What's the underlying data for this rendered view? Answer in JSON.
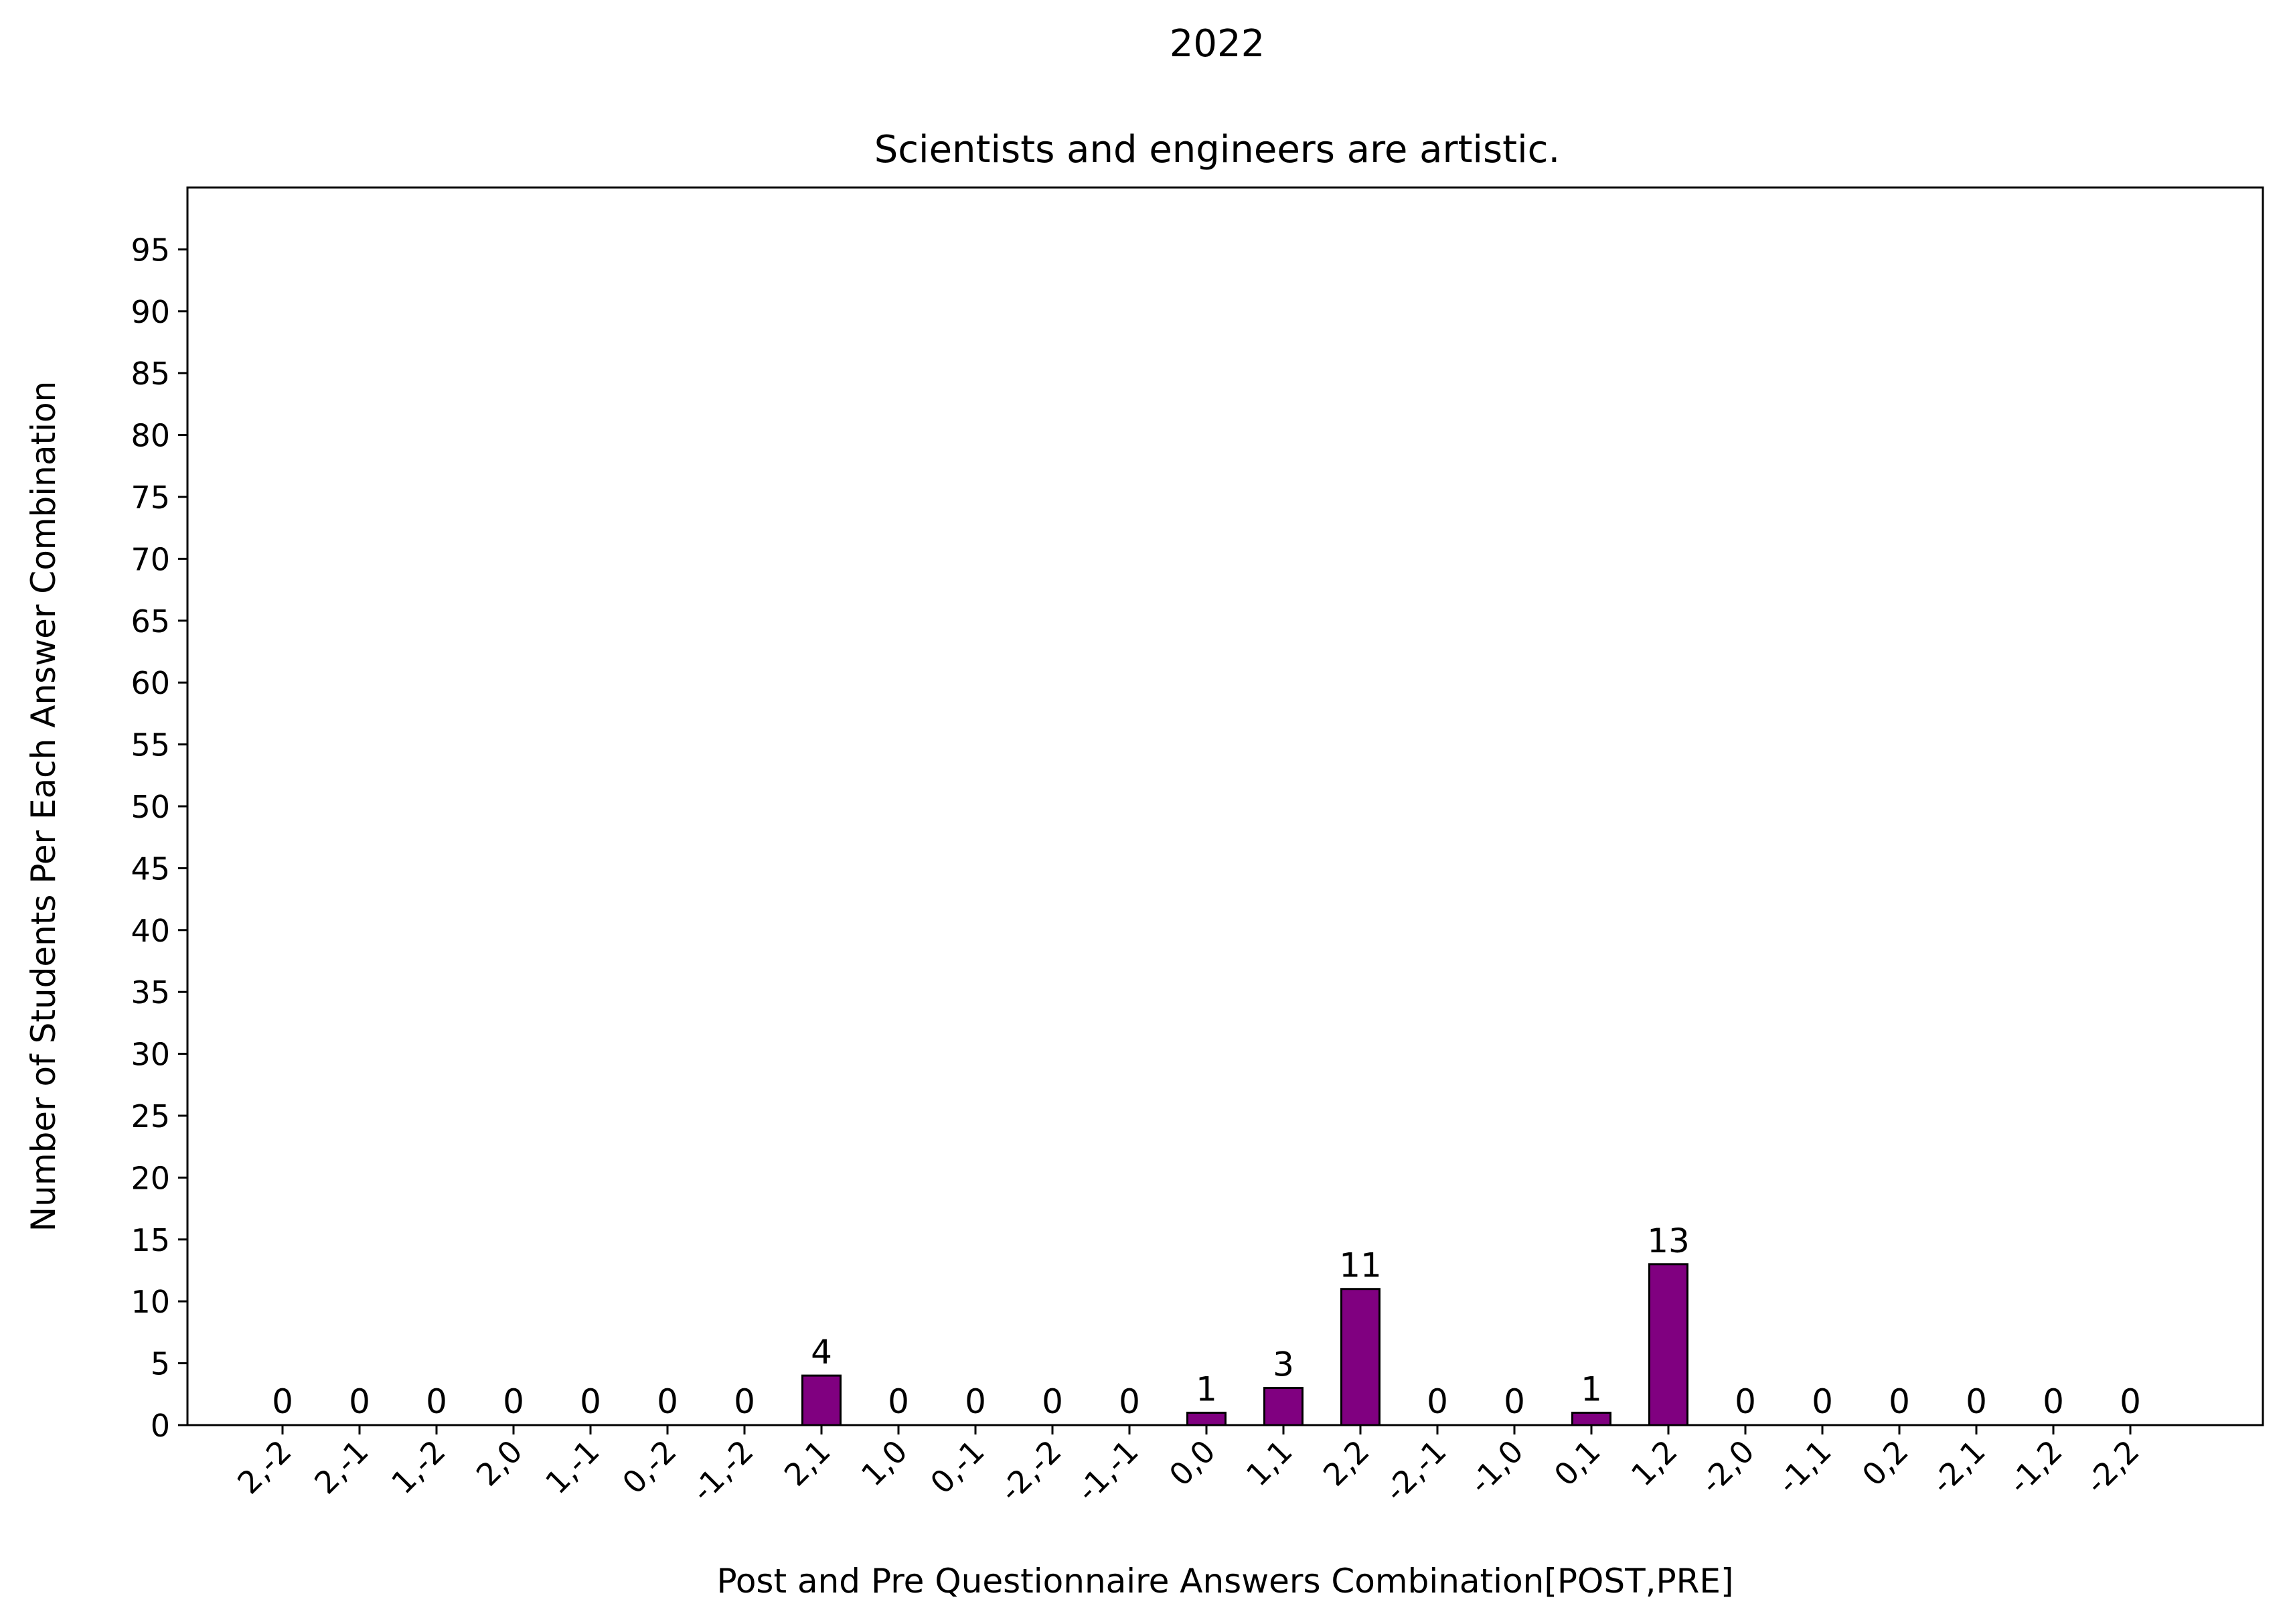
{
  "chart_data": {
    "type": "bar",
    "suptitle": "2022",
    "title": "Scientists and engineers are artistic.",
    "xlabel": "Post and Pre Questionnaire Answers Combination[POST,PRE]",
    "ylabel": "Number of Students Per Each Answer Combination",
    "categories": [
      "2,-2",
      "2,-1",
      "1,-2",
      "2,0",
      "1,-1",
      "0,-2",
      "-1,-2",
      "2,1",
      "1,0",
      "0,-1",
      "-2,-2",
      "-1,-1",
      "0,0",
      "1,1",
      "2,2",
      "-2,-1",
      "-1,0",
      "0,1",
      "1,2",
      "-2,0",
      "-1,1",
      "0,2",
      "-2,1",
      "-1,2",
      "-2,2"
    ],
    "values": [
      0,
      0,
      0,
      0,
      0,
      0,
      0,
      4,
      0,
      0,
      0,
      0,
      1,
      3,
      11,
      0,
      0,
      1,
      13,
      0,
      0,
      0,
      0,
      0,
      0
    ],
    "ylim": [
      0,
      100
    ],
    "yticks": [
      0,
      5,
      10,
      15,
      20,
      25,
      30,
      35,
      40,
      45,
      50,
      55,
      60,
      65,
      70,
      75,
      80,
      85,
      90,
      95
    ],
    "bar_color": "#800080",
    "edge_color": "#000000",
    "grid": false,
    "legend": "none"
  }
}
